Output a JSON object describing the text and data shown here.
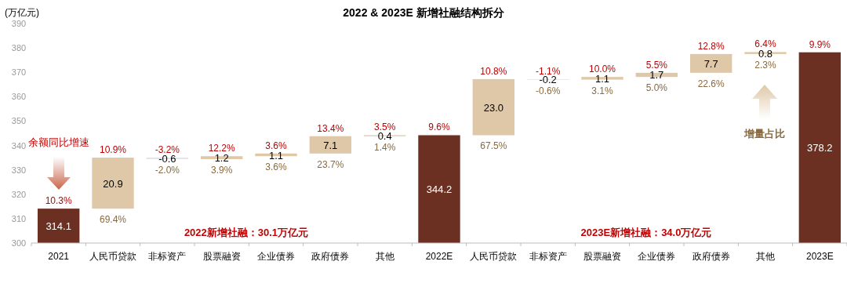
{
  "chart_data": {
    "type": "bar",
    "title": "2022 & 2023E 新增社融结构拆分",
    "ylabel": "(万亿元)",
    "categories": [
      "2021",
      "人民币贷款",
      "非标资产",
      "股票融资",
      "企业债券",
      "政府债券",
      "其他",
      "2022E",
      "人民币贷款",
      "非标资产",
      "股票融资",
      "企业债券",
      "政府债券",
      "其他",
      "2023E"
    ],
    "base": [
      300,
      314.1,
      335.0,
      334.4,
      335.6,
      336.7,
      343.8,
      300,
      344.2,
      367.2,
      367.0,
      368.1,
      369.8,
      377.5,
      300
    ],
    "values": [
      14.1,
      20.9,
      -0.6,
      1.2,
      1.1,
      7.1,
      0.4,
      44.2,
      23.0,
      -0.2,
      1.1,
      1.7,
      7.7,
      0.8,
      78.2
    ],
    "value_labels": [
      "314.1",
      "20.9",
      "-0.6",
      "1.2",
      "1.1",
      "7.1",
      "0.4",
      "344.2",
      "23.0",
      "-0.2",
      "1.1",
      "1.7",
      "7.7",
      "0.8",
      "378.2"
    ],
    "colors": [
      "#6b3022",
      "#dfc8a8",
      "#e2e2ea",
      "#dfc8a8",
      "#dfc8a8",
      "#dfc8a8",
      "#dfc8a8",
      "#6b3022",
      "#dfc8a8",
      "#e2e2ea",
      "#dfc8a8",
      "#dfc8a8",
      "#dfc8a8",
      "#dfc8a8",
      "#6b3022"
    ],
    "ylim": [
      300,
      390
    ],
    "yticks": [
      300,
      310,
      320,
      330,
      340,
      350,
      360,
      370,
      380,
      390
    ],
    "grid": false,
    "annotations": [
      "10.3%",
      "10.9%",
      "-3.2%",
      "12.2%",
      "3.6%",
      "13.4%",
      "3.5%",
      "9.6%",
      "10.8%",
      "-1.1%",
      "10.0%",
      "5.5%",
      "12.8%",
      "6.4%",
      "9.9%",
      "69.4%",
      "-2.0%",
      "3.9%",
      "3.6%",
      "23.7%",
      "1.4%",
      "67.5%",
      "-0.6%",
      "3.1%",
      "5.0%",
      "22.6%",
      "2.3%",
      "余额同比增速",
      "增量占比",
      "2022新增社融：30.1万亿元",
      "2023E新增社融：34.0万亿元"
    ]
  }
}
